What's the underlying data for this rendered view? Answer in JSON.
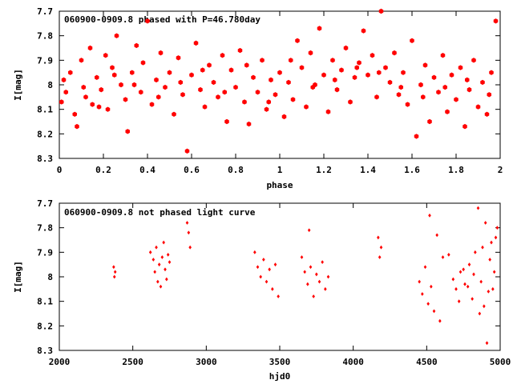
{
  "colors": {
    "points": "#ff0000",
    "axes": "#000000",
    "background": "#ffffff"
  },
  "chart_data": [
    {
      "type": "scatter",
      "title": "060900-0909.8 phased with P=46.780day",
      "xlabel": "phase",
      "ylabel": "I[mag]",
      "xlim": [
        0,
        2
      ],
      "ylim": [
        7.7,
        8.3
      ],
      "y_inverted": true,
      "grid": false,
      "marker": "filled-hexagon",
      "xticks": [
        "0",
        "0.2",
        "0.4",
        "0.6",
        "0.8",
        "1",
        "1.2",
        "1.4",
        "1.6",
        "1.8",
        "2"
      ],
      "yticks": [
        "7.7",
        "7.8",
        "7.9",
        "8",
        "8.1",
        "8.2",
        "8.3"
      ],
      "series": [
        {
          "points": [
            [
              0.02,
              7.98
            ],
            [
              0.03,
              8.03
            ],
            [
              0.05,
              7.95
            ],
            [
              0.07,
              8.12
            ],
            [
              0.08,
              8.17
            ],
            [
              0.1,
              7.9
            ],
            [
              0.12,
              8.05
            ],
            [
              0.14,
              7.85
            ],
            [
              0.15,
              8.08
            ],
            [
              0.17,
              7.97
            ],
            [
              0.19,
              8.02
            ],
            [
              0.21,
              7.88
            ],
            [
              0.22,
              8.1
            ],
            [
              0.24,
              7.93
            ],
            [
              0.26,
              7.8
            ],
            [
              0.28,
              8.0
            ],
            [
              0.3,
              8.06
            ],
            [
              0.31,
              8.19
            ],
            [
              0.33,
              7.95
            ],
            [
              0.35,
              7.84
            ],
            [
              0.37,
              8.03
            ],
            [
              0.38,
              7.91
            ],
            [
              0.4,
              7.74
            ],
            [
              0.42,
              8.08
            ],
            [
              0.44,
              7.98
            ],
            [
              0.46,
              7.87
            ],
            [
              0.48,
              8.01
            ],
            [
              0.5,
              7.95
            ],
            [
              0.52,
              8.12
            ],
            [
              0.54,
              7.89
            ],
            [
              0.56,
              8.04
            ],
            [
              0.58,
              8.27
            ],
            [
              0.6,
              7.96
            ],
            [
              0.62,
              7.83
            ],
            [
              0.64,
              8.02
            ],
            [
              0.66,
              8.09
            ],
            [
              0.68,
              7.92
            ],
            [
              0.7,
              7.99
            ],
            [
              0.72,
              8.05
            ],
            [
              0.74,
              7.88
            ],
            [
              0.76,
              8.15
            ],
            [
              0.78,
              7.94
            ],
            [
              0.8,
              8.01
            ],
            [
              0.82,
              7.86
            ],
            [
              0.84,
              8.07
            ],
            [
              0.86,
              8.16
            ],
            [
              0.88,
              7.97
            ],
            [
              0.9,
              8.03
            ],
            [
              0.92,
              7.9
            ],
            [
              0.94,
              8.1
            ],
            [
              0.96,
              7.98
            ],
            [
              0.98,
              8.04
            ],
            [
              1.0,
              7.95
            ],
            [
              1.02,
              8.13
            ],
            [
              1.04,
              7.99
            ],
            [
              1.06,
              8.06
            ],
            [
              1.08,
              7.82
            ],
            [
              1.1,
              7.93
            ],
            [
              1.12,
              8.09
            ],
            [
              1.14,
              7.87
            ],
            [
              1.16,
              8.0
            ],
            [
              1.18,
              7.77
            ],
            [
              1.2,
              7.96
            ],
            [
              1.22,
              8.11
            ],
            [
              1.24,
              7.9
            ],
            [
              1.26,
              8.02
            ],
            [
              1.28,
              7.94
            ],
            [
              1.3,
              7.85
            ],
            [
              1.32,
              8.07
            ],
            [
              1.34,
              7.97
            ],
            [
              1.36,
              7.91
            ],
            [
              1.38,
              7.78
            ],
            [
              1.4,
              7.96
            ],
            [
              1.42,
              7.88
            ],
            [
              1.44,
              8.05
            ],
            [
              1.46,
              7.7
            ],
            [
              1.48,
              7.93
            ],
            [
              1.5,
              7.99
            ],
            [
              1.52,
              7.87
            ],
            [
              1.54,
              8.04
            ],
            [
              1.56,
              7.95
            ],
            [
              1.58,
              8.08
            ],
            [
              1.6,
              7.82
            ],
            [
              1.62,
              8.21
            ],
            [
              1.64,
              8.0
            ],
            [
              1.66,
              7.92
            ],
            [
              1.68,
              8.15
            ],
            [
              1.7,
              7.97
            ],
            [
              1.72,
              8.03
            ],
            [
              1.74,
              7.88
            ],
            [
              1.76,
              8.11
            ],
            [
              1.78,
              7.96
            ],
            [
              1.8,
              8.06
            ],
            [
              1.82,
              7.93
            ],
            [
              1.84,
              8.17
            ],
            [
              1.86,
              8.02
            ],
            [
              1.88,
              7.9
            ],
            [
              1.9,
              8.09
            ],
            [
              1.92,
              7.99
            ],
            [
              1.94,
              8.12
            ],
            [
              1.96,
              7.95
            ],
            [
              1.98,
              7.74
            ],
            [
              0.01,
              8.07
            ],
            [
              0.11,
              8.01
            ],
            [
              0.18,
              8.09
            ],
            [
              0.25,
              7.96
            ],
            [
              0.34,
              8.0
            ],
            [
              0.45,
              8.05
            ],
            [
              0.55,
              7.99
            ],
            [
              0.65,
              7.94
            ],
            [
              0.75,
              8.03
            ],
            [
              0.85,
              7.92
            ],
            [
              0.95,
              8.07
            ],
            [
              1.05,
              7.9
            ],
            [
              1.15,
              8.01
            ],
            [
              1.25,
              7.98
            ],
            [
              1.35,
              7.93
            ],
            [
              1.45,
              7.95
            ],
            [
              1.55,
              8.01
            ],
            [
              1.65,
              8.05
            ],
            [
              1.75,
              8.01
            ],
            [
              1.85,
              7.98
            ],
            [
              1.95,
              8.04
            ]
          ]
        }
      ]
    },
    {
      "type": "scatter",
      "title": "060900-0909.8 not phased light curve",
      "xlabel": "hjd0",
      "ylabel": "I[mag]",
      "xlim": [
        2000,
        5000
      ],
      "ylim": [
        7.7,
        8.3
      ],
      "y_inverted": true,
      "grid": false,
      "marker": "filled-diamond",
      "xticks": [
        "2000",
        "2500",
        "3000",
        "3500",
        "4000",
        "4500",
        "5000"
      ],
      "yticks": [
        "7.7",
        "7.8",
        "7.9",
        "8",
        "8.1",
        "8.2",
        "8.3"
      ],
      "series": [
        {
          "points": [
            [
              2370,
              7.96
            ],
            [
              2375,
              8.0
            ],
            [
              2380,
              7.98
            ],
            [
              2620,
              7.9
            ],
            [
              2640,
              7.93
            ],
            [
              2650,
              7.98
            ],
            [
              2660,
              7.88
            ],
            [
              2670,
              8.02
            ],
            [
              2680,
              7.95
            ],
            [
              2690,
              8.04
            ],
            [
              2700,
              7.92
            ],
            [
              2710,
              7.86
            ],
            [
              2720,
              7.97
            ],
            [
              2730,
              8.01
            ],
            [
              2740,
              7.91
            ],
            [
              2750,
              7.94
            ],
            [
              2870,
              7.78
            ],
            [
              2880,
              7.82
            ],
            [
              2890,
              7.88
            ],
            [
              3330,
              7.9
            ],
            [
              3350,
              7.96
            ],
            [
              3370,
              8.0
            ],
            [
              3390,
              7.93
            ],
            [
              3410,
              8.02
            ],
            [
              3430,
              7.97
            ],
            [
              3450,
              8.05
            ],
            [
              3470,
              7.95
            ],
            [
              3490,
              8.08
            ],
            [
              3650,
              7.92
            ],
            [
              3670,
              7.98
            ],
            [
              3690,
              8.03
            ],
            [
              3700,
              7.81
            ],
            [
              3710,
              7.96
            ],
            [
              3730,
              8.08
            ],
            [
              3750,
              7.99
            ],
            [
              3770,
              8.02
            ],
            [
              3790,
              7.94
            ],
            [
              3810,
              8.05
            ],
            [
              3830,
              8.0
            ],
            [
              4170,
              7.84
            ],
            [
              4180,
              7.92
            ],
            [
              4190,
              7.88
            ],
            [
              4450,
              8.02
            ],
            [
              4470,
              8.07
            ],
            [
              4490,
              7.96
            ],
            [
              4510,
              8.11
            ],
            [
              4520,
              7.75
            ],
            [
              4530,
              8.04
            ],
            [
              4550,
              8.14
            ],
            [
              4570,
              7.83
            ],
            [
              4590,
              8.18
            ],
            [
              4610,
              7.92
            ],
            [
              4700,
              8.05
            ],
            [
              4730,
              7.98
            ],
            [
              4760,
              8.03
            ],
            [
              4790,
              7.95
            ],
            [
              4810,
              8.09
            ],
            [
              4830,
              7.9
            ],
            [
              4850,
              7.72
            ],
            [
              4870,
              8.02
            ],
            [
              4890,
              8.12
            ],
            [
              4900,
              7.78
            ],
            [
              4920,
              8.06
            ],
            [
              4940,
              7.86
            ],
            [
              4960,
              7.98
            ],
            [
              4980,
              7.8
            ],
            [
              4650,
              7.91
            ],
            [
              4680,
              8.01
            ],
            [
              4720,
              8.1
            ],
            [
              4750,
              7.97
            ],
            [
              4780,
              8.04
            ],
            [
              4820,
              7.99
            ],
            [
              4860,
              8.15
            ],
            [
              4880,
              7.88
            ],
            [
              4910,
              8.27
            ],
            [
              4930,
              7.93
            ],
            [
              4950,
              8.05
            ],
            [
              4970,
              7.84
            ]
          ]
        }
      ]
    }
  ]
}
